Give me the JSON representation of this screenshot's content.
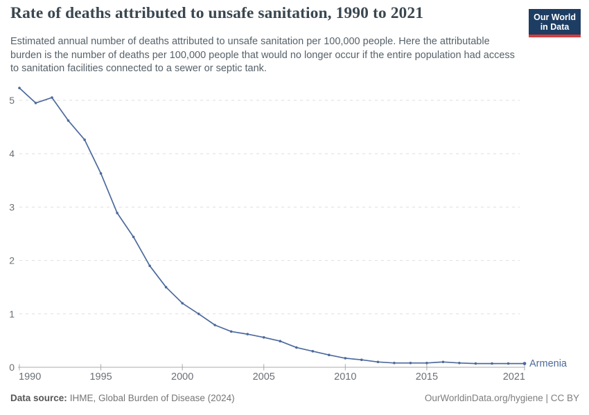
{
  "header": {
    "title": "Rate of deaths attributed to unsafe sanitation, 1990 to 2021",
    "subtitle": "Estimated annual number of deaths attributed to unsafe sanitation per 100,000 people. Here the attributable burden is the number of deaths per 100,000 people that would no longer occur if the entire population had access to sanitation facilities connected to a sewer or septic tank.",
    "logo": {
      "line1": "Our World",
      "line2": "in Data"
    }
  },
  "chart_data": {
    "type": "line",
    "title": "Rate of deaths attributed to unsafe sanitation, 1990 to 2021",
    "xlabel": "",
    "ylabel": "",
    "xlim": [
      1990,
      2021
    ],
    "ylim": [
      0,
      5
    ],
    "x_ticks": [
      1990,
      1995,
      2000,
      2005,
      2010,
      2015,
      2021
    ],
    "y_ticks": [
      0,
      1,
      2,
      3,
      4,
      5
    ],
    "grid": "horizontal-dashed",
    "legend_position": "end-of-line-label",
    "x": [
      1990,
      1991,
      1992,
      1993,
      1994,
      1995,
      1996,
      1997,
      1998,
      1999,
      2000,
      2001,
      2002,
      2003,
      2004,
      2005,
      2006,
      2007,
      2008,
      2009,
      2010,
      2011,
      2012,
      2013,
      2014,
      2015,
      2016,
      2017,
      2018,
      2019,
      2020,
      2021
    ],
    "series": [
      {
        "name": "Armenia",
        "color": "#4C6A9C",
        "values": [
          5.23,
          4.95,
          5.05,
          4.62,
          4.26,
          3.63,
          2.89,
          2.44,
          1.9,
          1.5,
          1.2,
          1.0,
          0.79,
          0.67,
          0.62,
          0.56,
          0.49,
          0.37,
          0.3,
          0.23,
          0.17,
          0.14,
          0.1,
          0.08,
          0.08,
          0.08,
          0.1,
          0.08,
          0.07,
          0.07,
          0.07,
          0.07
        ]
      }
    ]
  },
  "footer": {
    "datasource_label": "Data source:",
    "datasource_value": "IHME, Global Burden of Disease (2024)",
    "credit": "OurWorldinData.org/hygiene | CC BY"
  },
  "colors": {
    "series": "#4C6A9C",
    "logo_bg": "#1d3d63",
    "logo_red": "#d73c3c",
    "gridline": "#dedede",
    "axis": "#a8a8a8",
    "axis_label": "#6b7076"
  }
}
